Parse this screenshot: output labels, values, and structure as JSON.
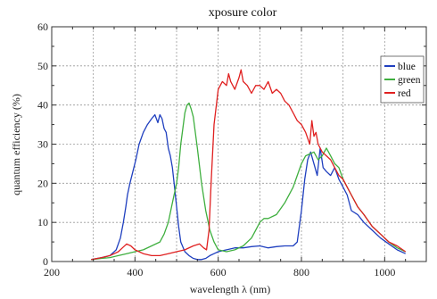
{
  "chart_data": {
    "type": "line",
    "title": "xposure color",
    "xlabel": "wavelength λ (nm)",
    "ylabel": "quantum efficiency (%)",
    "xlim": [
      200,
      1100
    ],
    "ylim": [
      0,
      60
    ],
    "xticks": [
      200,
      400,
      600,
      800,
      1000
    ],
    "yticks": [
      0,
      10,
      20,
      30,
      40,
      50,
      60
    ],
    "xtick_labels": [
      "200",
      "400",
      "600",
      "800",
      "1000"
    ],
    "ytick_labels": [
      "0",
      "10",
      "20",
      "30",
      "40",
      "50",
      "60"
    ],
    "xgrid": [
      300,
      400,
      500,
      600,
      700,
      800,
      900,
      1000
    ],
    "ygrid": [
      10,
      20,
      30,
      40,
      50
    ],
    "grid": true,
    "legend_position": "top-right",
    "series": [
      {
        "name": "blue",
        "color": "#1f3fbf",
        "x": [
          295,
          320,
          340,
          355,
          365,
          372,
          378,
          382,
          388,
          395,
          402,
          410,
          420,
          430,
          440,
          448,
          455,
          460,
          465,
          470,
          475,
          480,
          485,
          490,
          495,
          500,
          505,
          510,
          520,
          530,
          540,
          550,
          560,
          570,
          580,
          590,
          600,
          620,
          640,
          660,
          680,
          700,
          720,
          740,
          760,
          780,
          790,
          800,
          808,
          815,
          822,
          830,
          838,
          845,
          852,
          860,
          870,
          880,
          890,
          900,
          910,
          920,
          935,
          950,
          970,
          990,
          1010,
          1030,
          1050
        ],
        "y": [
          0.5,
          1,
          1.5,
          3,
          6,
          10,
          14,
          17,
          20,
          23,
          26,
          30,
          33,
          35,
          36.5,
          37.5,
          35.5,
          37.5,
          36.5,
          34,
          33,
          29,
          27,
          24,
          19,
          14,
          9,
          5,
          2.5,
          1.5,
          0.8,
          0.5,
          0.5,
          0.8,
          1.5,
          2,
          2.5,
          3,
          3.5,
          3.5,
          3.8,
          4,
          3.5,
          3.8,
          4,
          4,
          5,
          13,
          21,
          26,
          28,
          25,
          22,
          29,
          24,
          23,
          22,
          24,
          21,
          19,
          17,
          13,
          12,
          10,
          8,
          6,
          4.5,
          3,
          2
        ]
      },
      {
        "name": "green",
        "color": "#3faf3f",
        "x": [
          295,
          320,
          340,
          360,
          380,
          400,
          420,
          440,
          460,
          470,
          480,
          490,
          500,
          505,
          510,
          515,
          520,
          525,
          530,
          535,
          540,
          545,
          550,
          560,
          570,
          580,
          590,
          600,
          620,
          640,
          660,
          680,
          690,
          700,
          710,
          720,
          740,
          760,
          780,
          790,
          800,
          810,
          820,
          830,
          840,
          850,
          860,
          870,
          880,
          890,
          900,
          910,
          920,
          935,
          950,
          970,
          990,
          1010,
          1030,
          1050
        ],
        "y": [
          0.5,
          0.8,
          1,
          1.5,
          2,
          2.5,
          3,
          4,
          5,
          7,
          10,
          15,
          20,
          24,
          30,
          34,
          38,
          40,
          40.5,
          39,
          37,
          33,
          29,
          20,
          13,
          8,
          5,
          3,
          2.5,
          3,
          4,
          6,
          8,
          10,
          11,
          11,
          12,
          15,
          19,
          22,
          25,
          27,
          27.5,
          28,
          26,
          27,
          29,
          27,
          25,
          24,
          21,
          19,
          17,
          14,
          12,
          9,
          7,
          5,
          3.5,
          2.5
        ]
      },
      {
        "name": "red",
        "color": "#e02020",
        "x": [
          295,
          320,
          340,
          360,
          370,
          380,
          390,
          400,
          410,
          420,
          440,
          460,
          480,
          500,
          520,
          540,
          555,
          565,
          572,
          578,
          583,
          590,
          600,
          610,
          620,
          625,
          630,
          640,
          650,
          655,
          660,
          670,
          680,
          690,
          700,
          710,
          720,
          730,
          740,
          750,
          760,
          770,
          780,
          790,
          800,
          810,
          820,
          825,
          830,
          835,
          840,
          850,
          860,
          870,
          880,
          890,
          900,
          910,
          920,
          935,
          950,
          970,
          990,
          1010,
          1030,
          1050
        ],
        "y": [
          0.5,
          1,
          1.5,
          2.5,
          3.5,
          4.5,
          4,
          3,
          2.5,
          2,
          1.5,
          1.5,
          2,
          2.5,
          3,
          4,
          4.5,
          3.5,
          3,
          8,
          20,
          35,
          44,
          46,
          45,
          48,
          46,
          44,
          47,
          49,
          46,
          45,
          43,
          45,
          45,
          44,
          46,
          43,
          44,
          43,
          41,
          40,
          38,
          36,
          35,
          33,
          30,
          36,
          32,
          33,
          30,
          28,
          27,
          26,
          24,
          22,
          21,
          19,
          17,
          14,
          12,
          9,
          7,
          5,
          4,
          2.5
        ]
      }
    ]
  }
}
